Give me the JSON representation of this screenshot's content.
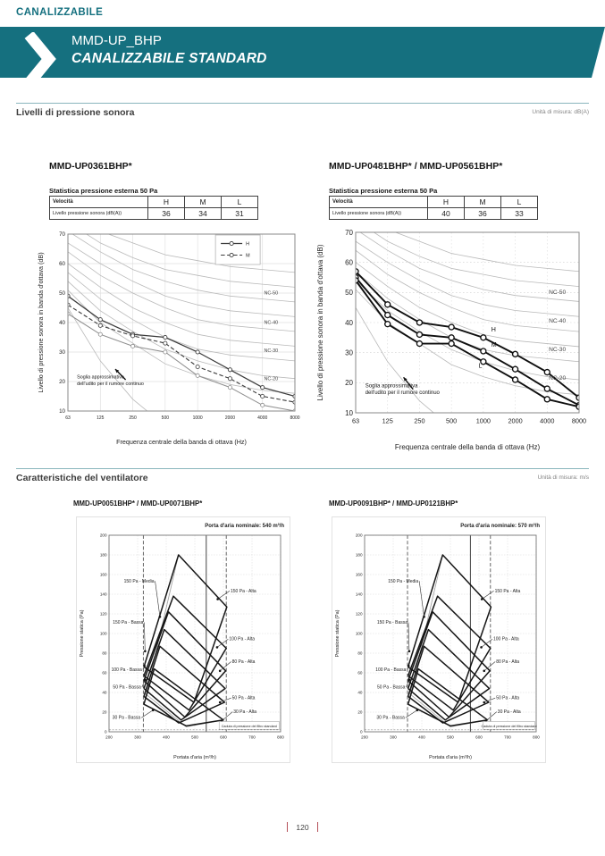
{
  "page": {
    "eyebrow": "CANALIZZABILE",
    "banner_title": "MMD-UP_BHP",
    "banner_subtitle": "CANALIZZABILE STANDARD",
    "page_number": "120",
    "colors": {
      "accent_teal": "#15707f",
      "footer_red": "#b5505a",
      "line_teal": "#8ab6bd"
    }
  },
  "sections": {
    "sound": {
      "title": "Livelli di pressione sonora",
      "unit": "Unità di misura: dB(A)"
    },
    "fan": {
      "title": "Caratteristiche del ventilatore",
      "unit": "Unità di misura: m/s"
    }
  },
  "sound_blocks": [
    {
      "model": "MMD-UP0361BHP*",
      "table_title": "Statistica pressione esterna 50 Pa",
      "table": {
        "header": [
          "Velocità",
          "H",
          "M",
          "L"
        ],
        "row_label": "Livello pressione sonora (dB(A))",
        "values": [
          36,
          34,
          31
        ]
      }
    },
    {
      "model": "MMD-UP0481BHP* / MMD-UP0561BHP*",
      "table_title": "Statistica pressione esterna 50 Pa",
      "table": {
        "header": [
          "Velocità",
          "H",
          "M",
          "L"
        ],
        "row_label": "Livello pressione sonora (dB(A))",
        "values": [
          40,
          36,
          33
        ]
      }
    }
  ],
  "chart_data": [
    {
      "id": "noise-left",
      "type": "line",
      "model": "MMD-UP0361BHP*",
      "xlabel": "Frequenza centrale della banda di ottava (Hz)",
      "ylabel": "Livello di pressione sonora in banda d'ottava (dB)",
      "x": [
        63,
        125,
        250,
        500,
        1000,
        2000,
        4000,
        8000
      ],
      "ylim": [
        10,
        70
      ],
      "grid": "solid-light",
      "series": [
        {
          "name": "H",
          "style": "solid",
          "values": [
            49,
            41,
            36,
            35,
            30,
            24,
            18,
            15
          ]
        },
        {
          "name": "M",
          "style": "dashed",
          "values": [
            46,
            39,
            35.5,
            33,
            25,
            21,
            15,
            13
          ]
        },
        {
          "name": "L",
          "style": "light",
          "values": [
            43,
            36,
            32,
            30,
            22,
            18,
            12,
            10
          ]
        }
      ],
      "nc_curves": [
        {
          "name": "NC-20",
          "values": [
            51,
            40,
            33,
            26,
            22,
            19,
            17,
            16
          ]
        },
        {
          "name": "NC-25",
          "values": [
            54,
            44,
            37,
            31,
            27,
            24,
            22,
            21
          ]
        },
        {
          "name": "NC-30",
          "values": [
            57,
            48,
            41,
            35,
            31,
            29,
            28,
            27
          ]
        },
        {
          "name": "NC-35",
          "values": [
            60,
            52,
            45,
            40,
            36,
            34,
            33,
            32
          ]
        },
        {
          "name": "NC-40",
          "values": [
            64,
            56,
            50,
            45,
            41,
            39,
            38,
            37
          ]
        },
        {
          "name": "NC-45",
          "values": [
            67,
            60,
            54,
            49,
            46,
            44,
            43,
            42
          ]
        },
        {
          "name": "NC-50",
          "values": [
            71,
            64,
            58,
            54,
            51,
            49,
            48,
            47
          ]
        },
        {
          "name": "NC-55",
          "values": [
            74,
            67,
            62,
            58,
            56,
            54,
            53,
            52
          ]
        },
        {
          "name": "NC-60",
          "values": [
            77,
            71,
            67,
            63,
            61,
            59,
            58,
            57
          ]
        }
      ],
      "nc_labels": [
        {
          "text": "NC-50",
          "xi": 6.05,
          "y": 49.5
        },
        {
          "text": "NC-40",
          "xi": 6.05,
          "y": 39.5
        },
        {
          "text": "NC-30",
          "xi": 6.05,
          "y": 30
        },
        {
          "text": "NC-20",
          "xi": 6.05,
          "y": 20.5
        }
      ],
      "threshold": {
        "name": "soglia-udito",
        "values": [
          45,
          27,
          14,
          5,
          0,
          -3,
          -5,
          -6
        ]
      },
      "annotation": {
        "lines": [
          "Soglia approssimativa",
          "dell'udito per il rumore continuo"
        ],
        "xi": 0.28,
        "y": 21,
        "arrow": [
          1.78,
          20.6,
          1.46,
          24.2
        ]
      },
      "legend": {
        "position": "top-right",
        "xi": 4.55,
        "y": 70,
        "entries": [
          {
            "name": "H",
            "style": "solid"
          },
          {
            "name": "M",
            "style": "dashed"
          }
        ]
      }
    },
    {
      "id": "noise-right",
      "type": "line",
      "model": "MMD-UP0481BHP* / MMD-UP0561BHP*",
      "xlabel": "Frequenza centrale della banda di ottava (Hz)",
      "ylabel": "Livello di pressione sonora in banda d'ottava (dB)",
      "x": [
        63,
        125,
        250,
        500,
        1000,
        2000,
        4000,
        8000
      ],
      "ylim": [
        10,
        70
      ],
      "grid": "dotted",
      "series": [
        {
          "name": "H",
          "style": "bold",
          "values": [
            57,
            46,
            40,
            38.5,
            35,
            29.5,
            23.5,
            15
          ]
        },
        {
          "name": "M",
          "style": "bold",
          "values": [
            55,
            42.5,
            36,
            35,
            30.5,
            24.5,
            18,
            12.5
          ]
        },
        {
          "name": "L",
          "style": "bold",
          "values": [
            54,
            39.5,
            33,
            33,
            27,
            21,
            14.5,
            12
          ]
        }
      ],
      "inline_labels": [
        {
          "text": "H",
          "xi": 4.25,
          "y": 37
        },
        {
          "text": "M",
          "xi": 4.25,
          "y": 32
        },
        {
          "text": "L",
          "xi": 3.85,
          "y": 25
        }
      ],
      "nc_curves": [
        {
          "name": "NC-20",
          "values": [
            51,
            40,
            33,
            26,
            22,
            19,
            17,
            16
          ]
        },
        {
          "name": "NC-25",
          "values": [
            54,
            44,
            37,
            31,
            27,
            24,
            22,
            21
          ]
        },
        {
          "name": "NC-30",
          "values": [
            57,
            48,
            41,
            35,
            31,
            29,
            28,
            27
          ]
        },
        {
          "name": "NC-35",
          "values": [
            60,
            52,
            45,
            40,
            36,
            34,
            33,
            32
          ]
        },
        {
          "name": "NC-40",
          "values": [
            64,
            56,
            50,
            45,
            41,
            39,
            38,
            37
          ]
        },
        {
          "name": "NC-45",
          "values": [
            67,
            60,
            54,
            49,
            46,
            44,
            43,
            42
          ]
        },
        {
          "name": "NC-50",
          "values": [
            71,
            64,
            58,
            54,
            51,
            49,
            48,
            47
          ]
        },
        {
          "name": "NC-55",
          "values": [
            74,
            67,
            62,
            58,
            56,
            54,
            53,
            52
          ]
        },
        {
          "name": "NC-60",
          "values": [
            77,
            71,
            67,
            63,
            61,
            59,
            58,
            57
          ]
        }
      ],
      "nc_labels": [
        {
          "text": "NC-50",
          "xi": 6.05,
          "y": 49.5
        },
        {
          "text": "NC-40",
          "xi": 6.05,
          "y": 40
        },
        {
          "text": "NC-30",
          "xi": 6.05,
          "y": 30.5
        },
        {
          "text": "NC-20",
          "xi": 6.05,
          "y": 21
        }
      ],
      "threshold": {
        "name": "soglia-udito",
        "values": [
          45,
          27,
          14,
          5,
          0,
          -3,
          -5,
          -6
        ]
      },
      "annotation": {
        "lines": [
          "Soglia approssimativa",
          "dell'udito per il rumore continuo"
        ],
        "xi": 0.3,
        "y": 18.5,
        "arrow": [
          1.8,
          17.8,
          1.5,
          21.8
        ]
      }
    },
    {
      "id": "fan-left",
      "type": "line",
      "model": "MMD-UP0051BHP* / MMD-UP0071BHP*",
      "title": "Porta d'aria nominale: 540 m³/h",
      "xlabel": "Portata d'aria (m³/h)",
      "ylabel": "Pressione statica (Pa)",
      "xlim": [
        200,
        800
      ],
      "ylim": [
        0,
        200
      ],
      "xstep": 100,
      "ystep": 20,
      "nominal_airflow": 540,
      "airflow_range_dashed": [
        320,
        610
      ],
      "filter_line_y": 2,
      "filter_note": "Caduta di pressione del filtro standard",
      "filter_note_x": [
        585,
        795
      ],
      "envelopes": [
        [
          [
            322,
            66
          ],
          [
            443,
            180
          ],
          [
            612,
            127
          ],
          [
            497,
            30
          ],
          [
            322,
            66
          ]
        ],
        [
          [
            322,
            57
          ],
          [
            425,
            138
          ],
          [
            610,
            85
          ],
          [
            480,
            22
          ],
          [
            322,
            57
          ]
        ],
        [
          [
            322,
            52
          ],
          [
            408,
            122
          ],
          [
            608,
            62
          ],
          [
            465,
            15
          ],
          [
            322,
            52
          ]
        ],
        [
          [
            322,
            44
          ],
          [
            393,
            104
          ],
          [
            606,
            44
          ],
          [
            452,
            12
          ],
          [
            322,
            44
          ]
        ],
        [
          [
            322,
            36
          ],
          [
            378,
            87
          ],
          [
            604,
            30
          ],
          [
            444,
            9
          ],
          [
            322,
            36
          ]
        ],
        [
          [
            322,
            28
          ],
          [
            358,
            64
          ],
          [
            600,
            12
          ],
          [
            470,
            6
          ],
          [
            322,
            28
          ]
        ]
      ],
      "thin_lines": [
        [
          [
            322,
            28
          ],
          [
            443,
            180
          ]
        ],
        [
          [
            322,
            40
          ],
          [
            470,
            5
          ],
          [
            600,
            12
          ]
        ]
      ],
      "labels": [
        {
          "text": "150 Pa - Media",
          "x": 358,
          "y": 152,
          "tipx": 378,
          "tipy": 117,
          "anchor": "end"
        },
        {
          "text": "150 Pa - Bassa",
          "x": 320,
          "y": 110,
          "tipx": 326,
          "tipy": 82,
          "anchor": "end"
        },
        {
          "text": "100 Pa - Bassa",
          "x": 315,
          "y": 62,
          "tipx": 324,
          "tipy": 67,
          "anchor": "end"
        },
        {
          "text": "50 Pa - Bassa",
          "x": 312,
          "y": 44,
          "tipx": 326,
          "tipy": 53,
          "anchor": "end"
        },
        {
          "text": "30 Pa - Bassa",
          "x": 310,
          "y": 13,
          "tipx": 354,
          "tipy": 22,
          "anchor": "end"
        },
        {
          "text": "150 Pa - Alta",
          "x": 625,
          "y": 142,
          "tipx": 580,
          "tipy": 135,
          "anchor": "start"
        },
        {
          "text": "100 Pa - Alta",
          "x": 620,
          "y": 93,
          "tipx": 578,
          "tipy": 86,
          "anchor": "start"
        },
        {
          "text": "80 Pa - Alta",
          "x": 630,
          "y": 70,
          "tipx": 588,
          "tipy": 62,
          "anchor": "start"
        },
        {
          "text": "50 Pa - Alta",
          "x": 630,
          "y": 33,
          "tipx": 588,
          "tipy": 30,
          "anchor": "start"
        },
        {
          "text": "30 Pa - Alta",
          "x": 635,
          "y": 19,
          "tipx": 594,
          "tipy": 11,
          "anchor": "start"
        }
      ]
    },
    {
      "id": "fan-right",
      "type": "line",
      "model": "MMD-UP0091BHP* / MMD-UP0121BHP*",
      "title": "Porta d'aria nominale: 570 m³/h",
      "xlabel": "Portata d'aria (m³/h)",
      "ylabel": "Pressione statica (Pa)",
      "xlim": [
        200,
        800
      ],
      "ylim": [
        0,
        200
      ],
      "xstep": 100,
      "ystep": 20,
      "nominal_airflow": 570,
      "airflow_range_dashed": [
        350,
        640
      ],
      "filter_line_y": 2,
      "filter_note": "Caduta di pressione del filtro standard",
      "filter_note_x": [
        615,
        795
      ],
      "envelopes": [
        [
          [
            352,
            66
          ],
          [
            473,
            180
          ],
          [
            642,
            127
          ],
          [
            527,
            30
          ],
          [
            352,
            66
          ]
        ],
        [
          [
            352,
            57
          ],
          [
            455,
            138
          ],
          [
            640,
            85
          ],
          [
            510,
            22
          ],
          [
            352,
            57
          ]
        ],
        [
          [
            352,
            52
          ],
          [
            438,
            122
          ],
          [
            638,
            62
          ],
          [
            495,
            15
          ],
          [
            352,
            52
          ]
        ],
        [
          [
            352,
            44
          ],
          [
            423,
            104
          ],
          [
            636,
            44
          ],
          [
            482,
            12
          ],
          [
            352,
            44
          ]
        ],
        [
          [
            352,
            36
          ],
          [
            408,
            87
          ],
          [
            634,
            30
          ],
          [
            474,
            9
          ],
          [
            352,
            36
          ]
        ],
        [
          [
            352,
            28
          ],
          [
            388,
            64
          ],
          [
            630,
            12
          ],
          [
            500,
            6
          ],
          [
            352,
            28
          ]
        ]
      ],
      "thin_lines": [
        [
          [
            352,
            28
          ],
          [
            473,
            180
          ]
        ],
        [
          [
            352,
            40
          ],
          [
            500,
            5
          ],
          [
            630,
            12
          ]
        ]
      ],
      "labels": [
        {
          "text": "150 Pa - Media",
          "x": 388,
          "y": 152,
          "tipx": 408,
          "tipy": 117,
          "anchor": "end"
        },
        {
          "text": "150 Pa - Bassa",
          "x": 350,
          "y": 110,
          "tipx": 356,
          "tipy": 82,
          "anchor": "end"
        },
        {
          "text": "100 Pa - Bassa",
          "x": 345,
          "y": 62,
          "tipx": 354,
          "tipy": 67,
          "anchor": "end"
        },
        {
          "text": "50 Pa - Bassa",
          "x": 342,
          "y": 44,
          "tipx": 356,
          "tipy": 53,
          "anchor": "end"
        },
        {
          "text": "30 Pa - Bassa",
          "x": 340,
          "y": 13,
          "tipx": 384,
          "tipy": 22,
          "anchor": "end"
        },
        {
          "text": "150 Pa - Alta",
          "x": 655,
          "y": 142,
          "tipx": 610,
          "tipy": 135,
          "anchor": "start"
        },
        {
          "text": "100 Pa - Alta",
          "x": 650,
          "y": 93,
          "tipx": 608,
          "tipy": 86,
          "anchor": "start"
        },
        {
          "text": "80 Pa - Alta",
          "x": 660,
          "y": 70,
          "tipx": 618,
          "tipy": 62,
          "anchor": "start"
        },
        {
          "text": "50 Pa - Alta",
          "x": 660,
          "y": 33,
          "tipx": 618,
          "tipy": 30,
          "anchor": "start"
        },
        {
          "text": "30 Pa - Alta",
          "x": 665,
          "y": 19,
          "tipx": 624,
          "tipy": 11,
          "anchor": "start"
        }
      ]
    }
  ]
}
